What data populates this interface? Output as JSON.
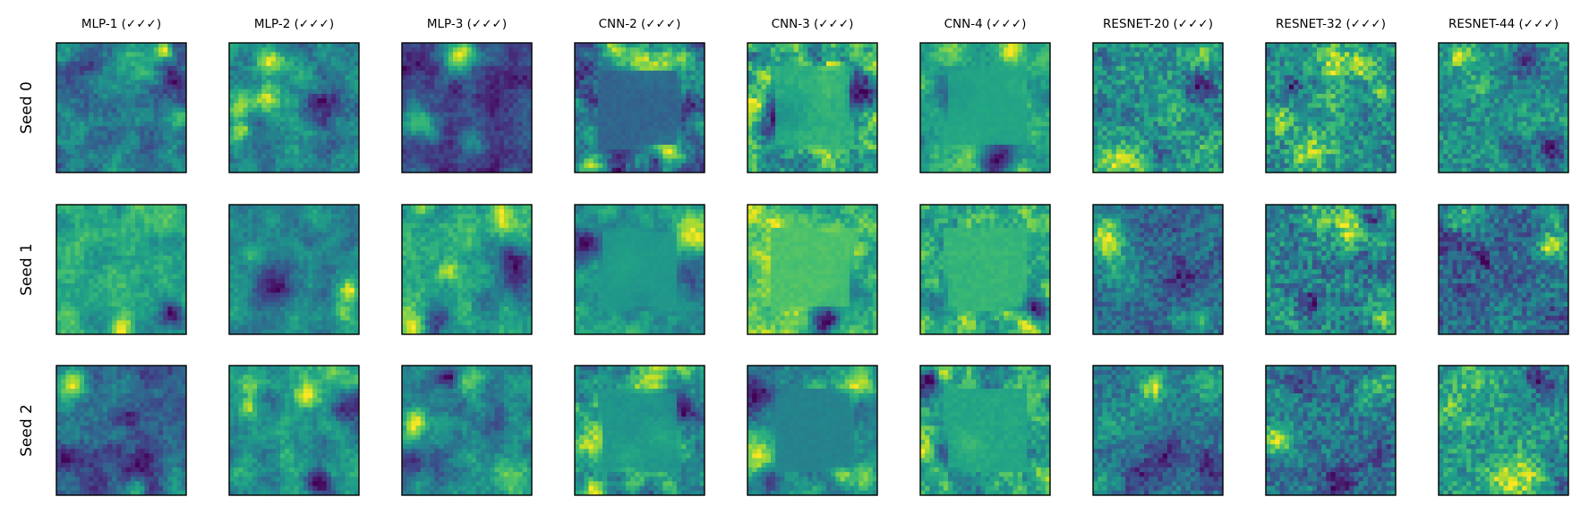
{
  "chart_data": {
    "type": "heatmap",
    "title": "",
    "colormap": "viridis",
    "columns": [
      {
        "title": "MLP-1 (✓✓✓)",
        "family": "mlp"
      },
      {
        "title": "MLP-2 (✓✓✓)",
        "family": "mlp"
      },
      {
        "title": "MLP-3 (✓✓✓)",
        "family": "mlp"
      },
      {
        "title": "CNN-2 (✓✓✓)",
        "family": "cnn"
      },
      {
        "title": "CNN-3 (✓✓✓)",
        "family": "cnn"
      },
      {
        "title": "CNN-4 (✓✓✓)",
        "family": "cnn"
      },
      {
        "title": "RESNET-20 (✓✓✓)",
        "family": "resnet"
      },
      {
        "title": "RESNET-32 (✓✓✓)",
        "family": "resnet"
      },
      {
        "title": "RESNET-44 (✓✓✓)",
        "family": "resnet"
      }
    ],
    "rows": [
      {
        "label": "Seed 0"
      },
      {
        "label": "Seed 1"
      },
      {
        "label": "Seed 2"
      }
    ],
    "grid_resolution": 28,
    "axis_ticks": "none"
  }
}
